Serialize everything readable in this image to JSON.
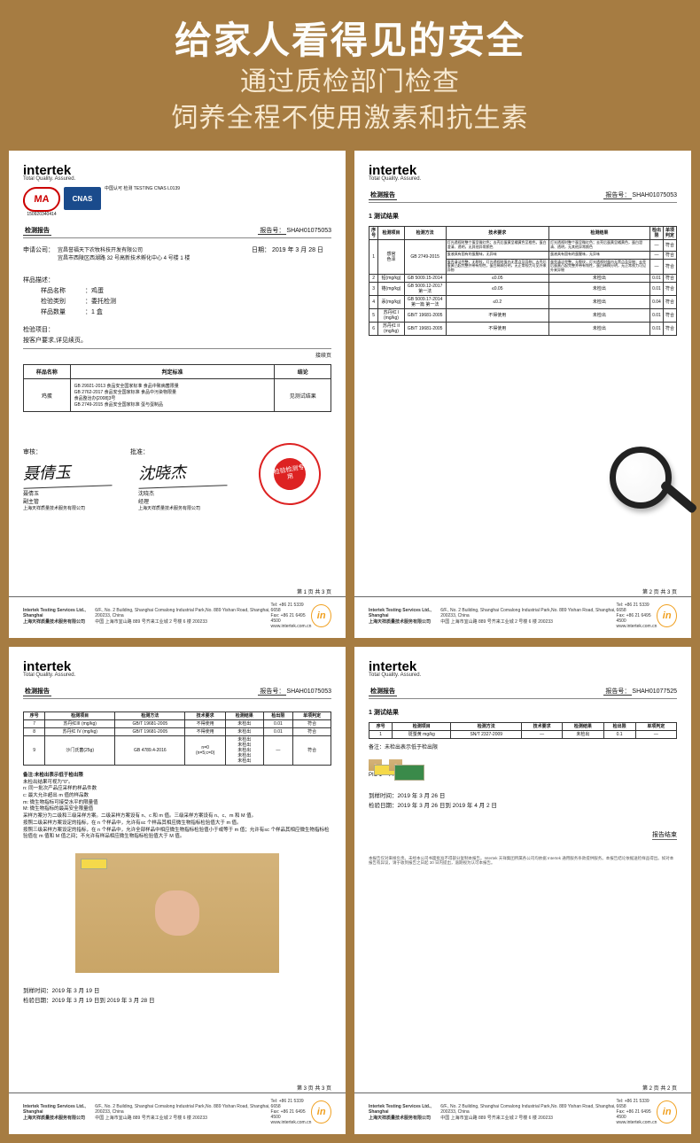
{
  "header": {
    "main": "给家人看得见的安全",
    "sub1": "通过质检部门检查",
    "sub2": "饲养全程不使用激素和抗生素"
  },
  "colors": {
    "page_bg": "#a67c42",
    "title_color": "#fdfdfb",
    "subtitle_color": "#f7e8cf",
    "doc_bg": "#ffffff",
    "stamp_red": "#d22222",
    "cnas_blue": "#1a4b8c",
    "in_orange": "#f0a020"
  },
  "brand": {
    "name": "intertek",
    "tagline": "Total Quality. Assured."
  },
  "report_label": "检测报告",
  "report_no_label": "报告号：",
  "doc1": {
    "ma_text": "MA",
    "ma_code": "150920340414",
    "cnas_text": "CNAS",
    "cnas_sub": "中国认可\n检测\nTESTING\nCNAS L0139",
    "report_no": "SHAH01075053",
    "applicant_label": "申请公司：",
    "applicant": "宜昌誉福天下农牧科技开发有限公司\n宜昌市西陵区西湖路 32 号高新技术孵化中心 4 号楼 1 楼",
    "date_label": "日期：",
    "date": "2019 年 3 月 28 日",
    "sample_desc_label": "样品描述：",
    "rows": [
      {
        "k": "样品名称",
        "v": "：鸡蛋"
      },
      {
        "k": "检验类别",
        "v": "：委托检测"
      },
      {
        "k": "样品数量",
        "v": "：1 盒"
      }
    ],
    "proj_label": "检验项目：",
    "proj_val": "按客户要求,详见续页。",
    "cont": "接续页",
    "std_table": {
      "headers": [
        "样品名称",
        "判定标准",
        "结论"
      ],
      "row_name": "鸡蛋",
      "stds": "GB 29921-2013 食品安全国家标准 食品中致病菌限量\nGB 2762-2017 食品安全国家标准 食品中污染物限量\n食品整治办[2008]3号\nGB 2749-2015 食品安全国家标准 蛋与蛋制品",
      "verdict": "见测试结果"
    },
    "review_label": "审核：",
    "approve_label": "批准：",
    "sig1": {
      "sign": "聂倩玉",
      "name": "聂倩玉",
      "title": "副主管",
      "org": "上海天祥质量技术服务有限公司"
    },
    "sig2": {
      "sign": "沈晓杰",
      "name": "沈晓杰",
      "title": "经理",
      "org": "上海天祥质量技术服务有限公司"
    },
    "stamp_text": "检验检测专用",
    "pager": "第 1 页 共 3 页"
  },
  "doc2": {
    "report_no": "SHAH01075053",
    "section_title": "1  测试结果",
    "headers": [
      "序号",
      "检测项目",
      "检测方法",
      "技术要求",
      "检测结果",
      "检出限",
      "单项判定"
    ],
    "organoleptic": {
      "seq": "1",
      "item": "感官",
      "method": "GB 2749-2015",
      "rows": [
        {
          "sub": "色泽",
          "req": "灯光透视时整个蛋呈微红色；去壳后蛋黄呈橘黄色至橙色，蛋白澄清、透明，无其他异常颜色",
          "res": "灯光透视时整个蛋呈微红色；去壳后蛋黄呈橘黄色，蛋白澄清、透明，无其他异常颜色",
          "lim": "—",
          "ver": "符合"
        },
        {
          "sub": "气味",
          "req": "蛋液具有固有的蛋腥味，无异味",
          "res": "蛋液具有固有的蛋腥味，无异味",
          "lim": "—",
          "ver": "符合"
        },
        {
          "sub": "状态",
          "req": "蛋壳清洁完整，无裂纹，灯光透视时蛋内无黑点及异物；去壳后蛋黄凸起完整并带有韧性，蛋白稀稠分明，无正常视力可见外来异物",
          "res": "蛋壳清洁完整，无裂纹，灯光透视时蛋内无黑点及异物；去壳后蛋黄凸起完整并带有韧性，蛋白稀稠分明，无正常视力可见外来异物",
          "lim": "—",
          "ver": "符合"
        }
      ]
    },
    "rows": [
      {
        "n": "2",
        "item": "铅(mg/kg)",
        "method": "GB 5009.15-2014",
        "req": "≤0.05",
        "res": "未检出",
        "lim": "0.01",
        "ver": "符合"
      },
      {
        "n": "3",
        "item": "铬(mg/kg)",
        "method": "GB 5009.12-2017 第一法",
        "req": "≤0.05",
        "res": "未检出",
        "lim": "0.01",
        "ver": "符合"
      },
      {
        "n": "4",
        "item": "汞(mg/kg)",
        "method": "GB 5009.17-2014 第一篇 第一法",
        "req": "≤0.2",
        "res": "未检出",
        "lim": "0.04",
        "ver": "符合"
      },
      {
        "n": "5",
        "item": "苏丹红 I (mg/kg)",
        "method": "GB/T 19681-2005",
        "req": "不得使用",
        "res": "未检出",
        "lim": "0.01",
        "ver": "符合"
      },
      {
        "n": "6",
        "item": "苏丹红 II (mg/kg)",
        "method": "GB/T 19681-2005",
        "req": "不得使用",
        "res": "未检出",
        "lim": "0.01",
        "ver": "符合"
      }
    ],
    "pager": "第 2 页 共 3 页"
  },
  "doc3": {
    "report_no": "SHAH01075053",
    "headers": [
      "序号",
      "检测项目",
      "检测方法",
      "技术要求",
      "检测结果",
      "检出限",
      "单项判定"
    ],
    "rows": [
      {
        "n": "7",
        "item": "苏丹红III (mg/kg)",
        "method": "GB/T 19681-2005",
        "req": "不得使用",
        "res": "未检出",
        "lim": "0.01",
        "ver": "符合"
      },
      {
        "n": "8",
        "item": "苏丹红 IV (mg/kg)",
        "method": "GB/T 19681-2005",
        "req": "不得使用",
        "res": "未检出",
        "lim": "0.01",
        "ver": "符合"
      },
      {
        "n": "9",
        "item": "沙门氏菌(25g)",
        "method": "GB 4789.4-2016",
        "req": "n=0\n(n=5;c=0)",
        "res": "未检出\n未检出\n未检出\n未检出\n未检出",
        "lim": "—",
        "ver": "符合"
      }
    ],
    "notes_title": "备注:未检出表示低于检出限",
    "notes_lines": [
      "未检出结果可视为\"0\"。",
      "n: 同一批次产品应采样的样品件数",
      "c: 最大允许超出 m 值的样品数",
      "m: 微生物指标可接受水平的限量值",
      "M: 微生物指标的最高安全限量值",
      "采样方案分为二级和三级采样方案。二级采样方案设有 n、c 和 m 值。三级采样方案设有 n、c、m 和 M 值。",
      "按照二级采样方案设定的指标，在 n 个样品中，允许有≤c 个样品其相应微生物指标检验值大于 m 值。",
      "按照三级采样方案设定的指标，在 n 个样品中，允许全部样品中相应微生物指标检验值小于或等于 m 值；允许有≤c 个样品其相应微生物指标检验值在 m 值和 M 值之间；不允许有样品相应微生物指标检验值大于 M 值。"
    ],
    "date_rcv_label": "到样时间：",
    "date_rcv": "2019 年 3 月 19 日",
    "date_test_label": "检验日期：",
    "date_test": "2019 年 3 月 19 日到 2019 年 3 月 28 日",
    "pager": "第 3 页 共 3 页"
  },
  "doc4": {
    "report_no": "SHAH01077525",
    "section_title": "1  测试结果",
    "headers": [
      "序号",
      "检测项目",
      "检测方法",
      "技术要求",
      "检测结果",
      "检出限",
      "单项判定"
    ],
    "row": {
      "n": "1",
      "item": "斑蝥黄 mg/kg",
      "method": "SN/T 2327-2009",
      "req": "—",
      "res": "未检出",
      "lim": "0.1",
      "ver": "—"
    },
    "note": "备注：未检出表示低于检出限",
    "pic1": "PIC 1",
    "pic2": "PIC 2",
    "date_rcv_label": "到样时间：",
    "date_rcv": "2019 年 3 月 26 日",
    "date_test_label": "检验日期：",
    "date_test": "2019 年 3 月 26 日到 2019 年 4 月 2 日",
    "result_label": "报告结束",
    "pager": "第 2 页 共 2 页"
  },
  "footer": {
    "org_en": "Intertek Testing Services Ltd., Shanghai",
    "org_cn": "上海天祥质量技术服务有限公司",
    "addr": "6/F., No. 2 Building, Shanghai Comalong Industrial Park,No. 889 Yishan Road, Shanghai, 200233, China\n中国 上海市宜山路 889 号齐来工业城 2 号楼 6 楼 200233",
    "tel": "Tel: +86 21 5339 6658\nFax: +86 21 6495 4500\nwww.intertek.com.cn"
  }
}
